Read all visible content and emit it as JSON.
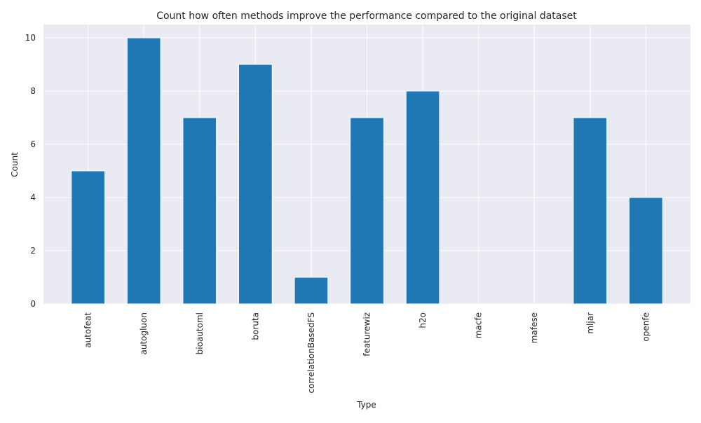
{
  "chart_data": {
    "type": "bar",
    "title": "Count how often methods improve the performance compared to the original dataset",
    "xlabel": "Type",
    "ylabel": "Count",
    "categories": [
      "autofeat",
      "autogluon",
      "bioautoml",
      "boruta",
      "correlationBasedFS",
      "featurewiz",
      "h2o",
      "macfe",
      "mafese",
      "mljar",
      "openfe"
    ],
    "values": [
      5,
      10,
      7,
      9,
      1,
      7,
      8,
      0,
      0,
      7,
      4
    ],
    "ylim": [
      0,
      10.5
    ],
    "yticks": [
      0,
      2,
      4,
      6,
      8,
      10
    ],
    "grid": true,
    "colors": {
      "bar": "#1f77b4",
      "background": "#eaeaf2",
      "grid": "#ffffff"
    }
  }
}
